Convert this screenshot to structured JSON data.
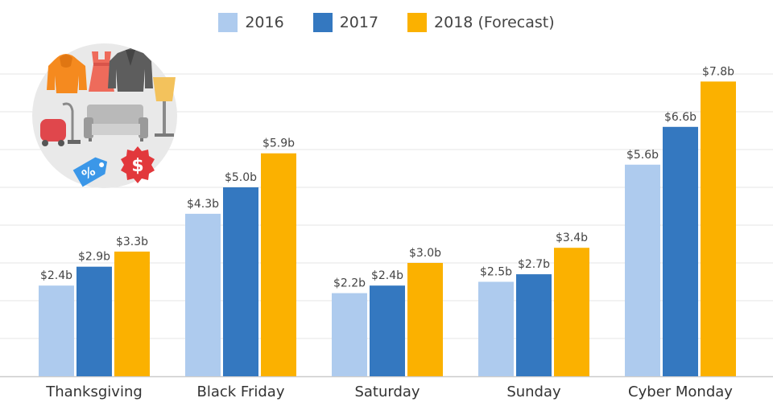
{
  "chart_data": {
    "type": "bar",
    "categories": [
      "Thanksgiving",
      "Black Friday",
      "Saturday",
      "Sunday",
      "Cyber Monday"
    ],
    "series": [
      {
        "name": "2016",
        "color": "#aecbee",
        "values": [
          2.4,
          4.3,
          2.2,
          2.5,
          5.6
        ],
        "labels": [
          "$2.4b",
          "$4.3b",
          "$2.2b",
          "$2.5b",
          "$5.6b"
        ]
      },
      {
        "name": "2017",
        "color": "#3478c0",
        "values": [
          2.9,
          5.0,
          2.4,
          2.7,
          6.6
        ],
        "labels": [
          "$2.9b",
          "$5.0b",
          "$2.4b",
          "$2.7b",
          "$6.6b"
        ]
      },
      {
        "name": "2018 (Forecast)",
        "color": "#fbb100",
        "values": [
          3.3,
          5.9,
          3.0,
          3.4,
          7.8
        ],
        "labels": [
          "$3.3b",
          "$5.9b",
          "$3.0b",
          "$3.4b",
          "$7.8b"
        ]
      }
    ],
    "ylim": [
      0,
      8.5
    ],
    "grid": true,
    "legend": "top-center"
  },
  "colors": {
    "grid": "#e6e6e6",
    "axis_text": "#333333",
    "value_text": "#444444"
  },
  "illustration": {
    "icons": [
      "hoodie-icon",
      "dress-icon",
      "jacket-icon",
      "floor-lamp-icon",
      "vacuum-cleaner-icon",
      "sofa-icon",
      "discount-tag-icon",
      "dollar-badge-icon"
    ]
  }
}
